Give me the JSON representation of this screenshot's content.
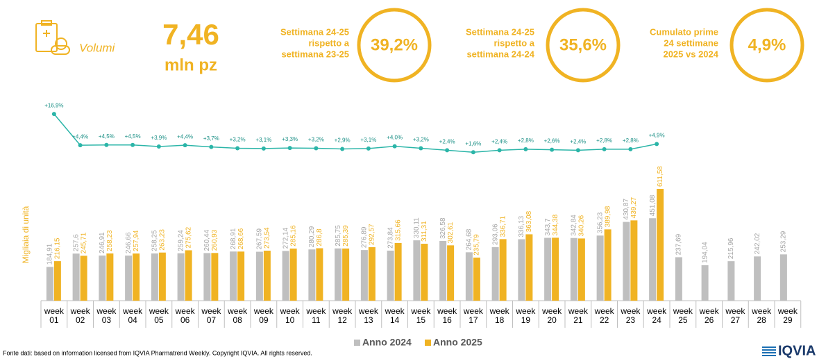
{
  "header": {
    "icon_label": "Volumi",
    "total": "7,46",
    "total_unit": "mln pz",
    "kpis": [
      {
        "label_lines": [
          "Settimana 24-25",
          "rispetto a",
          "settimana 23-25"
        ],
        "value": "39,2%"
      },
      {
        "label_lines": [
          "Settimana 24-25",
          "rispetto a",
          "settimana 24-24"
        ],
        "value": "35,6%"
      },
      {
        "label_lines": [
          "Cumulato prime",
          "24 settimane",
          "2025 vs 2024"
        ],
        "value": "4,9%"
      }
    ]
  },
  "chart_data": {
    "type": "bar_line",
    "y_label": "Migliaia di unità",
    "categories": [
      "week 01",
      "week 02",
      "week 03",
      "week 04",
      "week 05",
      "week 06",
      "week 07",
      "week 08",
      "week 09",
      "week 10",
      "week 11",
      "week 12",
      "week 13",
      "week 14",
      "week 15",
      "week 16",
      "week 17",
      "week 18",
      "week 19",
      "week 20",
      "week 21",
      "week 22",
      "week 23",
      "week 24",
      "week 25",
      "week 26",
      "week 27",
      "week 28",
      "week 29"
    ],
    "series": [
      {
        "name": "Anno 2024",
        "color": "#bfbfbf",
        "values": [
          184.91,
          257.6,
          246.91,
          246.66,
          258.25,
          259.24,
          260.44,
          268.91,
          267.59,
          272.14,
          280.29,
          285.75,
          276.89,
          273.84,
          330.11,
          326.58,
          264.68,
          293.06,
          336.13,
          343.7,
          342.84,
          356.23,
          430.87,
          451.08,
          237.69,
          194.04,
          215.96,
          242.02,
          253.29
        ],
        "value_labels": [
          "184,91",
          "257,6",
          "246,91",
          "246,66",
          "258,25",
          "259,24",
          "260,44",
          "268,91",
          "267,59",
          "272,14",
          "280,29",
          "285,75",
          "276,89",
          "273,84",
          "330,11",
          "326,58",
          "264,68",
          "293,06",
          "336,13",
          "343,7",
          "342,84",
          "356,23",
          "430,87",
          "451,08",
          "237,69",
          "194,04",
          "215,96",
          "242,02",
          "253,29"
        ]
      },
      {
        "name": "Anno 2025",
        "color": "#f0b323",
        "values": [
          216.15,
          245.71,
          258.23,
          257.94,
          263.23,
          275.62,
          260.93,
          268.66,
          273.54,
          285.16,
          286.8,
          285.39,
          292.57,
          315.66,
          311.31,
          302.61,
          235.79,
          336.71,
          363.08,
          344.38,
          340.26,
          389.98,
          439.27,
          611.58,
          null,
          null,
          null,
          null,
          null
        ],
        "value_labels": [
          "216,15",
          "245,71",
          "258,23",
          "257,94",
          "263,23",
          "275,62",
          "260,93",
          "268,66",
          "273,54",
          "285,16",
          "286,8",
          "285,39",
          "292,57",
          "315,66",
          "311,31",
          "302,61",
          "235,79",
          "336,71",
          "363,08",
          "344,38",
          "340,26",
          "389,98",
          "439,27",
          "611,58",
          null,
          null,
          null,
          null,
          null
        ]
      }
    ],
    "growth": {
      "color": "#2bb5a8",
      "values": [
        16.9,
        4.4,
        4.5,
        4.5,
        3.9,
        4.4,
        3.7,
        3.2,
        3.1,
        3.3,
        3.2,
        2.9,
        3.1,
        4.0,
        3.2,
        2.4,
        1.6,
        2.4,
        2.8,
        2.6,
        2.4,
        2.8,
        2.8,
        4.9,
        null,
        null,
        null,
        null,
        null
      ],
      "value_labels": [
        "+16,9%",
        "+4,4%",
        "+4,5%",
        "+4,5%",
        "+3,9%",
        "+4,4%",
        "+3,7%",
        "+3,2%",
        "+3,1%",
        "+3,3%",
        "+3,2%",
        "+2,9%",
        "+3,1%",
        "+4,0%",
        "+3,2%",
        "+2,4%",
        "+1,6%",
        "+2,4%",
        "+2,8%",
        "+2,6%",
        "+2,4%",
        "+2,8%",
        "+2,8%",
        "+4,9%",
        null,
        null,
        null,
        null,
        null
      ]
    }
  },
  "footer": "Fonte dati: based on information licensed from IQVIA Pharmatrend Weekly. Copyright IQVIA. All rights reserved.",
  "logo": "IQVIA"
}
